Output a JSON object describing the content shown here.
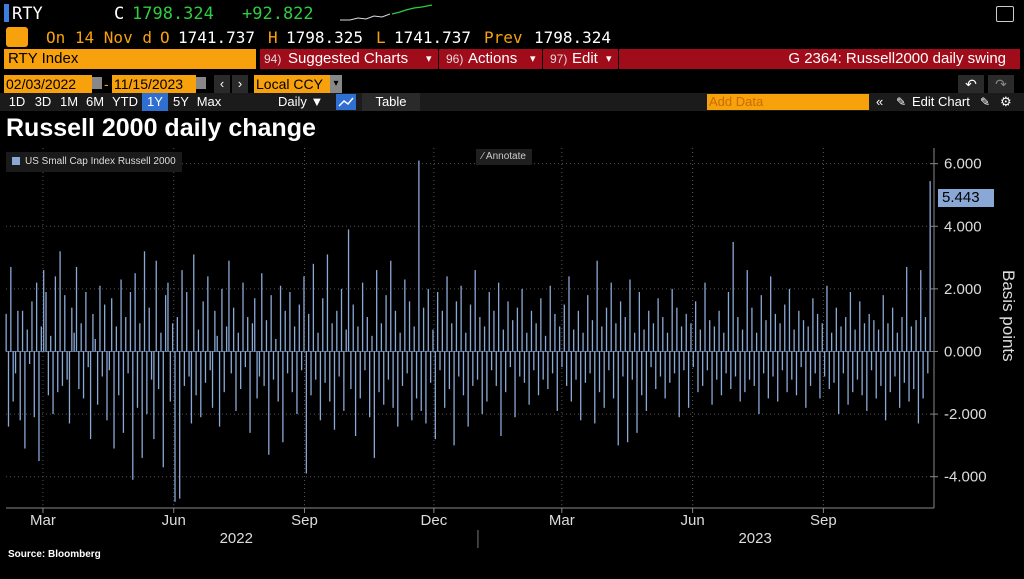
{
  "quote": {
    "ticker": "RTY",
    "close_label": "C",
    "close_value": "1798.324",
    "change": "+92.822",
    "on_date": "On 14 Nov d",
    "open_label": "O",
    "open_value": "1741.737",
    "high_label": "H",
    "high_value": "1798.325",
    "low_label": "L",
    "low_value": "1741.737",
    "prev_label": "Prev",
    "prev_value": "1798.324"
  },
  "toolbar": {
    "security": "RTY Index",
    "suggested_num": "94)",
    "suggested": "Suggested Charts",
    "actions_num": "96)",
    "actions": "Actions",
    "edit_num": "97)",
    "edit": "Edit",
    "chart_id": "G 2364: Russell2000 daily swing"
  },
  "range": {
    "start": "02/03/2022",
    "end": "11/15/2023",
    "currency": "Local CCY"
  },
  "periods": [
    "1D",
    "3D",
    "1M",
    "6M",
    "YTD",
    "1Y",
    "5Y",
    "Max"
  ],
  "active_period": "1Y",
  "frequency": "Daily",
  "table_label": "Table",
  "add_data_placeholder": "Add Data",
  "edit_chart_label": "Edit Chart",
  "annotate_label": "Annotate",
  "source": "Source: Bloomberg",
  "colors": {
    "accent": "#f7a10c",
    "bar": "#8aa8d6",
    "red_bar": "#a00c1a",
    "positive": "#2ecc40"
  },
  "chart_data": {
    "type": "bar",
    "title": "Russell 2000 daily change",
    "ylabel": "Basis points",
    "legend": "US Small Cap Index Russell 2000",
    "last_value_label": "5.443",
    "ylim": [
      -5,
      6.5
    ],
    "y_ticks": [
      "6.000",
      "4.000",
      "2.000",
      "0.000",
      "-2.000",
      "-4.000"
    ],
    "y_tick_values": [
      6,
      4,
      2,
      0,
      -2,
      -4
    ],
    "x_tick_labels": [
      "Mar",
      "Jun",
      "Sep",
      "Dec",
      "Mar",
      "Jun",
      "Sep"
    ],
    "x_tick_dates": [
      "2022-03-01",
      "2022-06-01",
      "2022-09-01",
      "2022-12-01",
      "2023-03-01",
      "2023-06-01",
      "2023-09-01"
    ],
    "year_labels": [
      "2022",
      "2023"
    ],
    "year_label_dates": [
      "2022-07-15",
      "2023-07-15"
    ],
    "x_range": [
      "2022-02-03",
      "2023-11-15"
    ],
    "series": [
      {
        "name": "US Small Cap Index Russell 2000",
        "start_date": "2022-02-03",
        "end_date": "2023-11-15",
        "values": [
          1.2,
          -2.4,
          2.7,
          -1.6,
          -0.7,
          1.3,
          -2.2,
          1.3,
          -3.1,
          0.7,
          -0.4,
          1.6,
          -2.1,
          2.2,
          -3.5,
          0.8,
          2.6,
          1.9,
          -1.4,
          0.5,
          -2.0,
          2.4,
          -1.3,
          3.2,
          -1.1,
          1.8,
          -0.9,
          -2.3,
          1.4,
          0.6,
          2.7,
          -1.2,
          0.9,
          -1.5,
          1.9,
          -0.5,
          -2.8,
          1.2,
          0.4,
          -1.7,
          2.1,
          -0.8,
          1.5,
          -2.2,
          -0.6,
          1.7,
          -3.1,
          0.8,
          -1.4,
          2.3,
          -2.6,
          1.1,
          -0.7,
          1.9,
          -4.1,
          2.5,
          -1.8,
          0.9,
          -3.4,
          3.2,
          -2.0,
          1.4,
          -0.9,
          -2.8,
          2.9,
          -1.2,
          0.6,
          -3.7,
          1.8,
          2.2,
          -1.6,
          0.9,
          -4.8,
          1.1,
          -4.7,
          2.6,
          -1.1,
          1.9,
          -0.8,
          -2.3,
          3.1,
          -1.4,
          0.7,
          -2.1,
          1.6,
          -1.0,
          2.4,
          -0.6,
          -1.8,
          1.3,
          0.5,
          -2.4,
          2.0,
          -1.3,
          0.8,
          2.9,
          -0.7,
          1.4,
          -1.9,
          0.6,
          -1.2,
          2.2,
          -0.5,
          1.1,
          -2.6,
          0.9,
          1.7,
          -1.5,
          -0.8,
          2.5,
          -1.1,
          1.0,
          -3.3,
          1.8,
          -0.9,
          0.4,
          -1.6,
          2.1,
          -2.9,
          1.3,
          -0.7,
          1.9,
          -1.3,
          0.8,
          -2.0,
          1.5,
          -0.6,
          2.4,
          -3.9,
          1.2,
          -1.4,
          2.8,
          -0.9,
          0.6,
          -2.2,
          1.7,
          -1.0,
          3.1,
          -1.6,
          0.9,
          -2.5,
          1.3,
          -0.8,
          2.0,
          -1.9,
          0.7,
          3.9,
          -1.2,
          1.5,
          -2.7,
          0.8,
          -1.5,
          2.2,
          -0.6,
          1.1,
          -2.1,
          0.5,
          -3.4,
          2.6,
          -1.3,
          0.9,
          -1.7,
          1.8,
          -0.9,
          2.9,
          -1.8,
          1.3,
          -2.4,
          0.6,
          -1.1,
          2.3,
          -0.7,
          1.6,
          -2.2,
          0.8,
          -1.5,
          6.1,
          -1.9,
          1.4,
          -2.3,
          2.0,
          -1.0,
          0.7,
          -2.8,
          1.9,
          -0.6,
          1.3,
          -1.8,
          2.4,
          -1.2,
          0.9,
          -3.0,
          1.6,
          -0.8,
          2.1,
          -1.4,
          0.6,
          -2.4,
          1.5,
          -1.1,
          2.6,
          -0.9,
          1.1,
          -2.0,
          0.8,
          -1.6,
          1.9,
          -0.6,
          1.3,
          -1.1,
          2.2,
          -2.7,
          0.7,
          -1.3,
          1.6,
          -0.5,
          1.0,
          -2.1,
          1.4,
          -0.8,
          2.0,
          -1.0,
          0.6,
          -1.7,
          1.3,
          -0.6,
          0.9,
          -1.4,
          1.7,
          -0.9,
          0.5,
          -1.2,
          2.1,
          -0.7,
          1.2,
          -1.9,
          0.8,
          -0.5,
          1.5,
          -1.1,
          2.4,
          -1.6,
          0.7,
          -0.9,
          1.3,
          -2.2,
          0.6,
          -1.0,
          1.8,
          -0.7,
          1.0,
          -2.3,
          2.9,
          -1.3,
          0.8,
          -1.8,
          1.4,
          -0.6,
          2.2,
          -1.5,
          0.9,
          -3.0,
          1.6,
          -0.8,
          1.1,
          -2.9,
          2.3,
          -0.9,
          0.6,
          -2.6,
          1.9,
          -1.4,
          0.7,
          -1.9,
          1.3,
          -0.5,
          0.9,
          -1.2,
          1.7,
          -0.8,
          1.1,
          -1.5,
          0.6,
          -1.0,
          2.0,
          -0.7,
          1.4,
          -2.1,
          0.8,
          -0.6,
          1.2,
          -1.8,
          0.9,
          -0.5,
          1.6,
          -1.3,
          0.7,
          -1.1,
          2.2,
          -0.6,
          1.0,
          -1.7,
          0.8,
          -0.9,
          1.3,
          -1.4,
          0.6,
          -0.7,
          1.9,
          -1.2,
          3.5,
          -0.8,
          1.1,
          -1.6,
          0.7,
          -1.3,
          2.6,
          -0.9,
          1.4,
          -1.1,
          0.6,
          -2.0,
          1.8,
          -0.7,
          1.0,
          -1.5,
          2.4,
          -0.8,
          1.2,
          -1.6,
          0.9,
          -0.6,
          1.5,
          -1.3,
          2.0,
          -0.9,
          0.7,
          -1.4,
          1.3,
          -0.5,
          1.0,
          -1.8,
          0.8,
          -1.1,
          1.7,
          -0.7,
          1.2,
          -1.5,
          0.9,
          -0.8,
          2.1,
          -1.2,
          0.6,
          -1.0,
          1.4,
          -2.0,
          0.8,
          -0.7,
          1.1,
          -1.7,
          1.9,
          -1.3,
          0.7,
          -0.9,
          1.6,
          -1.4,
          0.9,
          -1.9,
          1.2,
          -0.6,
          1.0,
          -1.5,
          0.7,
          -1.1,
          1.8,
          -2.2,
          0.9,
          -1.3,
          1.4,
          -0.8,
          0.6,
          -1.8,
          1.1,
          -1.0,
          2.7,
          -1.6,
          0.8,
          -1.2,
          1.0,
          -2.3,
          2.6,
          -1.5,
          1.1,
          -0.7,
          5.443
        ]
      }
    ]
  }
}
